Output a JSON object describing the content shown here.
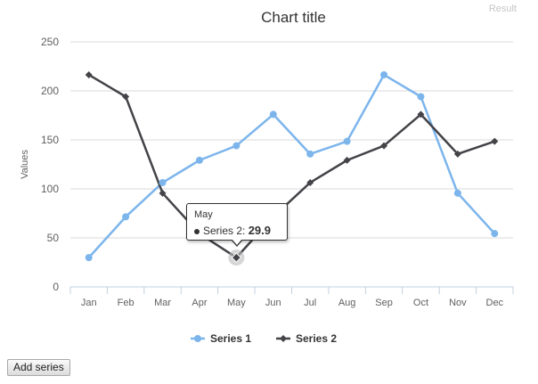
{
  "result_label": "Result",
  "add_series_label": "Add series",
  "tooltip": {
    "category": "May",
    "series": "Series 2",
    "value": "29.9"
  },
  "chart_data": {
    "type": "line",
    "title": "Chart title",
    "xlabel": "",
    "ylabel": "Values",
    "categories": [
      "Jan",
      "Feb",
      "Mar",
      "Apr",
      "May",
      "Jun",
      "Jul",
      "Aug",
      "Sep",
      "Oct",
      "Nov",
      "Dec"
    ],
    "ylim": [
      0,
      250
    ],
    "yticks": [
      0,
      50,
      100,
      150,
      200,
      250
    ],
    "grid": true,
    "legend_position": "bottom",
    "series": [
      {
        "name": "Series 1",
        "color": "#7cb5ec",
        "marker": "circle",
        "values": [
          29.9,
          71.5,
          106.4,
          129.2,
          144.0,
          176.0,
          135.6,
          148.5,
          216.4,
          194.1,
          95.6,
          54.4
        ]
      },
      {
        "name": "Series 2",
        "color": "#434348",
        "marker": "diamond",
        "values": [
          216.4,
          194.1,
          95.6,
          54.4,
          29.9,
          71.5,
          106.4,
          129.2,
          144.0,
          176.0,
          135.6,
          148.5
        ]
      }
    ]
  }
}
